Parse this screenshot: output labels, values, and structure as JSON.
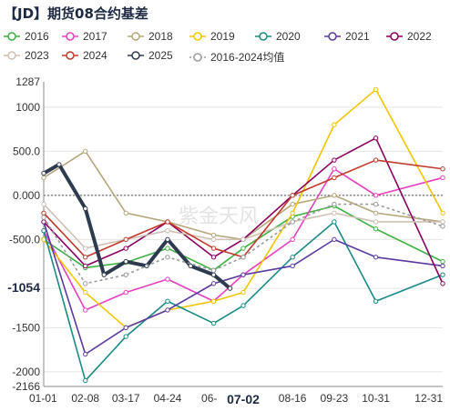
{
  "title": "【JD】期货08合约基差",
  "chart_data": {
    "type": "line",
    "title": "【JD】期货08合约基差",
    "ylim": [
      -2166,
      1287
    ],
    "y_ticks": [
      "1287",
      "1000",
      "500.0",
      "0.000",
      "-500.0",
      "-1054",
      "-1500",
      "-2000",
      "-2166"
    ],
    "x_ticks": [
      "01-01",
      "02-08",
      "03-17",
      "04-24",
      "06-",
      "07-02",
      "08-16",
      "09-23",
      "10-31",
      "12-31"
    ],
    "highlight_x": "07-02",
    "highlight_y": "-1054",
    "zero_line": true,
    "watermark": "紫金天风",
    "legend_position": "top",
    "series": [
      {
        "name": "2016",
        "color": "#3cb043",
        "x": [
          "01-01",
          "02-08",
          "03-17",
          "04-24",
          "06-05",
          "07-02",
          "08-16",
          "09-23",
          "10-31",
          "12-31"
        ],
        "y": [
          -500,
          -820,
          -760,
          -600,
          -850,
          -600,
          -240,
          -120,
          -380,
          -750
        ]
      },
      {
        "name": "2017",
        "color": "#e83ec0",
        "x": [
          "01-01",
          "02-08",
          "03-17",
          "04-24",
          "06-05",
          "07-02",
          "08-16",
          "09-23",
          "10-31",
          "12-31"
        ],
        "y": [
          -400,
          -1300,
          -1100,
          -950,
          -1200,
          -900,
          -500,
          300,
          0,
          200
        ]
      },
      {
        "name": "2018",
        "color": "#b5a67c",
        "x": [
          "01-01",
          "02-08",
          "03-17",
          "04-24",
          "06-05",
          "07-02",
          "08-16",
          "09-23",
          "10-31",
          "12-31"
        ],
        "y": [
          200,
          500,
          -200,
          -300,
          -450,
          -500,
          -100,
          0,
          -200,
          -300
        ]
      },
      {
        "name": "2019",
        "color": "#f2c500",
        "x": [
          "01-01",
          "02-08",
          "03-17",
          "04-24",
          "06-05",
          "07-02",
          "08-16",
          "09-23",
          "10-31",
          "12-31"
        ],
        "y": [
          -500,
          -1100,
          -1500,
          -1300,
          -1200,
          -1100,
          -200,
          800,
          1200,
          -200
        ]
      },
      {
        "name": "2020",
        "color": "#1a8a86",
        "x": [
          "01-01",
          "02-08",
          "03-17",
          "04-24",
          "06-05",
          "07-02",
          "08-16",
          "09-23",
          "10-31",
          "12-31"
        ],
        "y": [
          -400,
          -2100,
          -1600,
          -1200,
          -1450,
          -1250,
          -700,
          -300,
          -1200,
          -900
        ]
      },
      {
        "name": "2021",
        "color": "#5a3aa0",
        "x": [
          "01-01",
          "02-08",
          "03-17",
          "04-24",
          "06-05",
          "07-02",
          "08-16",
          "09-23",
          "10-31",
          "12-31"
        ],
        "y": [
          -300,
          -1800,
          -1500,
          -1300,
          -1000,
          -900,
          -800,
          -500,
          -700,
          -800
        ]
      },
      {
        "name": "2022",
        "color": "#8b0060",
        "x": [
          "01-01",
          "02-08",
          "03-17",
          "04-24",
          "06-05",
          "07-02",
          "08-16",
          "09-23",
          "10-31",
          "12-31"
        ],
        "y": [
          -300,
          -800,
          -600,
          -300,
          -700,
          -500,
          0,
          400,
          650,
          -1000
        ]
      },
      {
        "name": "2023",
        "color": "#cfc0b4",
        "x": [
          "01-01",
          "02-08",
          "03-17",
          "04-24",
          "06-05",
          "07-02",
          "08-16",
          "09-23",
          "10-31",
          "12-31"
        ],
        "y": [
          -100,
          -600,
          -500,
          -400,
          -500,
          -500,
          -300,
          -200,
          -300,
          -300
        ]
      },
      {
        "name": "2024",
        "color": "#c0392b",
        "x": [
          "01-01",
          "02-08",
          "03-17",
          "04-24",
          "06-05",
          "07-02",
          "08-16",
          "09-23",
          "10-31",
          "12-31"
        ],
        "y": [
          -200,
          -700,
          -500,
          -300,
          -600,
          -700,
          0,
          200,
          400,
          300
        ]
      },
      {
        "name": "2025",
        "color": "#2e3b4e",
        "x": [
          "01-01",
          "01-15",
          "02-08",
          "02-25",
          "03-17",
          "04-05",
          "04-24",
          "05-15",
          "06-05",
          "06-20"
        ],
        "y": [
          250,
          350,
          -150,
          -900,
          -750,
          -800,
          -500,
          -800,
          -900,
          -1054
        ]
      },
      {
        "name": "2016-2024均值",
        "color": "#999999",
        "x": [
          "01-01",
          "02-08",
          "03-17",
          "04-24",
          "06-05",
          "07-02",
          "08-16",
          "09-23",
          "10-31",
          "12-31"
        ],
        "y": [
          -250,
          -1000,
          -900,
          -700,
          -850,
          -700,
          -300,
          -100,
          -100,
          -350
        ]
      }
    ]
  }
}
